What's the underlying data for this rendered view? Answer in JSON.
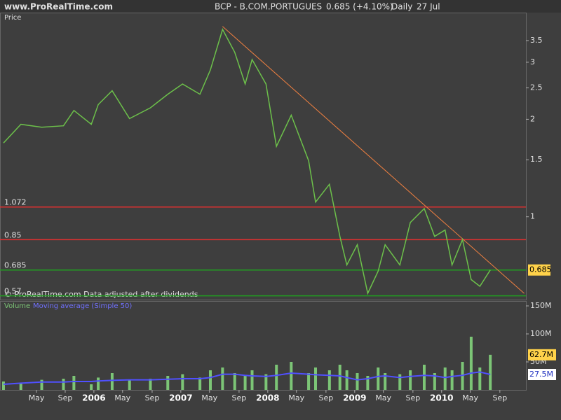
{
  "header": {
    "site": "www.ProRealTime.com",
    "symbol": "BCP - B.COM.PORTUGUES",
    "quote": "0.685 (+4.10%)",
    "period": "Daily",
    "date": "27 Jul"
  },
  "chart_data": [
    {
      "type": "line",
      "panel_label": "Price",
      "note": "© ProRealTime.com  Data adjusted after dividends",
      "log_scale": true,
      "x": [
        2004.96,
        2005.16,
        2005.4,
        2005.65,
        2005.77,
        2005.97,
        2006.05,
        2006.21,
        2006.41,
        2006.65,
        2006.85,
        2007.02,
        2007.22,
        2007.34,
        2007.48,
        2007.62,
        2007.74,
        2007.82,
        2007.98,
        2008.1,
        2008.27,
        2008.47,
        2008.55,
        2008.71,
        2008.83,
        2008.91,
        2009.03,
        2009.15,
        2009.27,
        2009.35,
        2009.52,
        2009.64,
        2009.8,
        2009.92,
        2010.04,
        2010.12,
        2010.24,
        2010.34,
        2010.44,
        2010.56
      ],
      "series": [
        {
          "name": "BCP",
          "color": "#6cc04a",
          "values": [
            1.69,
            1.93,
            1.89,
            1.91,
            2.13,
            1.93,
            2.22,
            2.45,
            2.01,
            2.17,
            2.39,
            2.57,
            2.39,
            2.84,
            3.79,
            3.22,
            2.57,
            3.06,
            2.57,
            1.65,
            2.06,
            1.49,
            1.11,
            1.26,
            0.87,
            0.71,
            0.82,
            0.58,
            0.68,
            0.82,
            0.71,
            0.96,
            1.06,
            0.87,
            0.91,
            0.71,
            0.85,
            0.64,
            0.61,
            0.685
          ]
        }
      ],
      "trendline": {
        "color": "#f08040",
        "x": [
          2007.48,
          2010.95
        ],
        "values": [
          3.87,
          0.58
        ]
      },
      "levels": [
        {
          "value": 1.072,
          "color": "#e03030"
        },
        {
          "value": 0.85,
          "color": "#e03030"
        },
        {
          "value": 0.685,
          "color": "#20a020"
        },
        {
          "value": 0.57,
          "color": "#20a020"
        }
      ],
      "xlim": [
        2004.92,
        2010.97
      ],
      "ylim": [
        0.555,
        4.27
      ],
      "yticks": [
        1,
        1.5,
        2,
        2.5,
        3,
        3.5
      ]
    },
    {
      "type": "bar",
      "panel_label": "Volume",
      "x": [
        2004.96,
        2005.16,
        2005.4,
        2005.65,
        2005.77,
        2005.97,
        2006.05,
        2006.21,
        2006.41,
        2006.65,
        2006.85,
        2007.02,
        2007.22,
        2007.34,
        2007.48,
        2007.62,
        2007.74,
        2007.82,
        2007.98,
        2008.1,
        2008.27,
        2008.47,
        2008.55,
        2008.71,
        2008.83,
        2008.91,
        2009.03,
        2009.15,
        2009.27,
        2009.35,
        2009.52,
        2009.64,
        2009.8,
        2009.92,
        2010.04,
        2010.12,
        2010.24,
        2010.34,
        2010.44,
        2010.56
      ],
      "series": [
        {
          "name": "Volume",
          "color": "#7cc576",
          "values": [
            15,
            12,
            18,
            20,
            25,
            10,
            22,
            30,
            18,
            20,
            25,
            28,
            22,
            35,
            40,
            30,
            25,
            35,
            28,
            45,
            50,
            30,
            40,
            35,
            45,
            35,
            30,
            25,
            40,
            30,
            28,
            35,
            45,
            30,
            40,
            35,
            50,
            95,
            40,
            62.7
          ],
          "value_labels": [
            null,
            null,
            null,
            null,
            null,
            null,
            null,
            null,
            null,
            null,
            null,
            null,
            null,
            null,
            null,
            null,
            null,
            null,
            null,
            null,
            null,
            null,
            null,
            null,
            null,
            null,
            null,
            null,
            null,
            null,
            null,
            null,
            null,
            null,
            null,
            null,
            null,
            null,
            null,
            "62.7M"
          ]
        },
        {
          "name": "Moving average (Simple 50)",
          "color": "#5050ff",
          "type": "line",
          "values": [
            10,
            12,
            14,
            14,
            15,
            15,
            16,
            17,
            18,
            18,
            19,
            20,
            20,
            22,
            28,
            28,
            26,
            25,
            24,
            26,
            30,
            28,
            27,
            26,
            25,
            22,
            18,
            20,
            24,
            25,
            22,
            24,
            26,
            25,
            22,
            24,
            26,
            30,
            32,
            27.5
          ],
          "value_labels": [
            null,
            null,
            null,
            null,
            null,
            null,
            null,
            null,
            null,
            null,
            null,
            null,
            null,
            null,
            null,
            null,
            null,
            null,
            null,
            null,
            null,
            null,
            null,
            null,
            null,
            null,
            null,
            null,
            null,
            null,
            null,
            null,
            null,
            null,
            null,
            null,
            null,
            null,
            null,
            "27.5M"
          ]
        }
      ],
      "xlim": [
        2004.92,
        2010.97
      ],
      "ylim": [
        0,
        158.75
      ],
      "yticks": [
        {
          "value": 50,
          "label": "50M"
        },
        {
          "value": 100,
          "label": "100M"
        },
        {
          "value": 150,
          "label": "150M"
        }
      ],
      "xticks": [
        {
          "value": 2005.34,
          "label": "May"
        },
        {
          "value": 2005.67,
          "label": "Sep"
        },
        2006,
        {
          "value": 2006.33,
          "label": "May"
        },
        {
          "value": 2006.67,
          "label": "Sep"
        },
        2007,
        {
          "value": 2007.33,
          "label": "May"
        },
        {
          "value": 2007.67,
          "label": "Sep"
        },
        2008,
        {
          "value": 2008.33,
          "label": "May"
        },
        {
          "value": 2008.67,
          "label": "Sep"
        },
        2009,
        {
          "value": 2009.33,
          "label": "May"
        },
        {
          "value": 2009.67,
          "label": "Sep"
        },
        2010,
        {
          "value": 2010.33,
          "label": "May"
        },
        {
          "value": 2010.67,
          "label": "Sep"
        }
      ]
    }
  ]
}
